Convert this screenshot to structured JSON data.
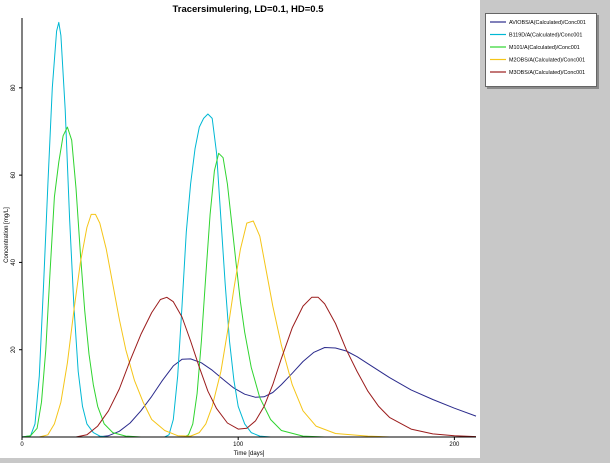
{
  "chart_data": {
    "type": "line",
    "title": "Tracersimulering, LD=0.1, HD=0.5",
    "xlabel": "Time  [days]",
    "ylabel": "Concentration  [mg/L]",
    "xlim": [
      0,
      210
    ],
    "ylim": [
      0,
      96
    ],
    "x_ticks": [
      0,
      100,
      200
    ],
    "y_ticks": [
      20,
      40,
      60,
      80
    ],
    "grid": false,
    "legend_position": "top-right, outside plot",
    "series": [
      {
        "name": "AVIOBS/A(Calculated)/Conc001",
        "color": "#2b2b8c",
        "points": [
          [
            0,
            0
          ],
          [
            35,
            0
          ],
          [
            40,
            0.3
          ],
          [
            45,
            1.3
          ],
          [
            50,
            3.2
          ],
          [
            55,
            6.0
          ],
          [
            60,
            9.3
          ],
          [
            65,
            13
          ],
          [
            70,
            16.3
          ],
          [
            74,
            17.8
          ],
          [
            78,
            17.9
          ],
          [
            83,
            17
          ],
          [
            88,
            15.3
          ],
          [
            93,
            13.2
          ],
          [
            98,
            11.2
          ],
          [
            103,
            9.8
          ],
          [
            108,
            9.1
          ],
          [
            112,
            9.2
          ],
          [
            116,
            10.2
          ],
          [
            120,
            12
          ],
          [
            125,
            14.6
          ],
          [
            130,
            17.3
          ],
          [
            135,
            19.4
          ],
          [
            140,
            20.5
          ],
          [
            145,
            20.4
          ],
          [
            150,
            19.7
          ],
          [
            155,
            18.4
          ],
          [
            160,
            16.8
          ],
          [
            170,
            13.6
          ],
          [
            180,
            10.8
          ],
          [
            190,
            8.6
          ],
          [
            200,
            6.6
          ],
          [
            210,
            4.8
          ]
        ]
      },
      {
        "name": "B119D/A(Calculated)/Conc001",
        "color": "#00b8d4",
        "points": [
          [
            0,
            0
          ],
          [
            4,
            0.3
          ],
          [
            6,
            3
          ],
          [
            8,
            14
          ],
          [
            10,
            35
          ],
          [
            12,
            58
          ],
          [
            14,
            80
          ],
          [
            16,
            93
          ],
          [
            17,
            95
          ],
          [
            18,
            92
          ],
          [
            20,
            75
          ],
          [
            22,
            50
          ],
          [
            24,
            30
          ],
          [
            26,
            15
          ],
          [
            28,
            7
          ],
          [
            30,
            3
          ],
          [
            33,
            1
          ],
          [
            36,
            0.2
          ],
          [
            40,
            0
          ],
          [
            66,
            0
          ],
          [
            68,
            0.5
          ],
          [
            70,
            4
          ],
          [
            72,
            14
          ],
          [
            74,
            30
          ],
          [
            76,
            47
          ],
          [
            78,
            58
          ],
          [
            80,
            66
          ],
          [
            82,
            71
          ],
          [
            84,
            73
          ],
          [
            86,
            74
          ],
          [
            88,
            73
          ],
          [
            90,
            65
          ],
          [
            92,
            50
          ],
          [
            94,
            35
          ],
          [
            96,
            22
          ],
          [
            98,
            13
          ],
          [
            100,
            7
          ],
          [
            103,
            3
          ],
          [
            106,
            1
          ],
          [
            110,
            0.2
          ],
          [
            115,
            0
          ]
        ]
      },
      {
        "name": "M101/A(Calculated)/Conc001",
        "color": "#2fd42f",
        "points": [
          [
            0,
            0
          ],
          [
            4,
            0.3
          ],
          [
            7,
            2
          ],
          [
            9,
            8
          ],
          [
            11,
            20
          ],
          [
            13,
            38
          ],
          [
            15,
            55
          ],
          [
            17,
            63
          ],
          [
            19,
            69
          ],
          [
            21,
            71
          ],
          [
            23,
            68
          ],
          [
            25,
            57
          ],
          [
            27,
            42
          ],
          [
            29,
            29
          ],
          [
            31,
            19
          ],
          [
            33,
            12
          ],
          [
            35,
            7
          ],
          [
            38,
            3
          ],
          [
            42,
            1
          ],
          [
            48,
            0.2
          ],
          [
            55,
            0
          ],
          [
            75,
            0
          ],
          [
            77,
            0.5
          ],
          [
            79,
            3
          ],
          [
            81,
            10
          ],
          [
            83,
            22
          ],
          [
            85,
            37
          ],
          [
            87,
            51
          ],
          [
            89,
            61
          ],
          [
            91,
            65
          ],
          [
            93,
            64
          ],
          [
            95,
            58
          ],
          [
            97,
            49
          ],
          [
            99,
            40
          ],
          [
            101,
            31
          ],
          [
            103,
            24
          ],
          [
            106,
            16
          ],
          [
            110,
            9
          ],
          [
            115,
            4
          ],
          [
            120,
            1.5
          ],
          [
            130,
            0.2
          ],
          [
            140,
            0
          ]
        ]
      },
      {
        "name": "M2OBS/A(Calculated)/Conc001",
        "color": "#f5c518",
        "points": [
          [
            0,
            0
          ],
          [
            8,
            0
          ],
          [
            12,
            0.5
          ],
          [
            15,
            3
          ],
          [
            18,
            8
          ],
          [
            21,
            17
          ],
          [
            24,
            29
          ],
          [
            27,
            40
          ],
          [
            30,
            48
          ],
          [
            32,
            51
          ],
          [
            34,
            51
          ],
          [
            36,
            49
          ],
          [
            39,
            43
          ],
          [
            42,
            35
          ],
          [
            45,
            27
          ],
          [
            48,
            20
          ],
          [
            52,
            13
          ],
          [
            56,
            8
          ],
          [
            60,
            4
          ],
          [
            66,
            1.5
          ],
          [
            72,
            0.3
          ],
          [
            78,
            0.2
          ],
          [
            82,
            1
          ],
          [
            85,
            3
          ],
          [
            88,
            7
          ],
          [
            92,
            15
          ],
          [
            95,
            24
          ],
          [
            98,
            34
          ],
          [
            101,
            43
          ],
          [
            104,
            49
          ],
          [
            107,
            49.5
          ],
          [
            110,
            46
          ],
          [
            113,
            38
          ],
          [
            116,
            30
          ],
          [
            120,
            21
          ],
          [
            125,
            12
          ],
          [
            130,
            6
          ],
          [
            136,
            2.5
          ],
          [
            145,
            0.8
          ],
          [
            160,
            0.2
          ],
          [
            170,
            0
          ]
        ]
      },
      {
        "name": "M3OBS/A(Calculated)/Conc001",
        "color": "#9b1c1c",
        "points": [
          [
            0,
            0
          ],
          [
            25,
            0
          ],
          [
            30,
            0.5
          ],
          [
            35,
            2.5
          ],
          [
            40,
            6
          ],
          [
            45,
            11
          ],
          [
            50,
            17.5
          ],
          [
            55,
            23.5
          ],
          [
            60,
            28.5
          ],
          [
            64,
            31.5
          ],
          [
            67,
            32
          ],
          [
            70,
            31
          ],
          [
            74,
            27.5
          ],
          [
            78,
            22
          ],
          [
            82,
            16
          ],
          [
            86,
            10.5
          ],
          [
            90,
            6.5
          ],
          [
            95,
            3.2
          ],
          [
            100,
            1.8
          ],
          [
            104,
            2
          ],
          [
            108,
            3.7
          ],
          [
            112,
            7
          ],
          [
            116,
            12
          ],
          [
            120,
            18
          ],
          [
            125,
            25
          ],
          [
            130,
            30
          ],
          [
            134,
            32
          ],
          [
            137,
            32
          ],
          [
            140,
            30.5
          ],
          [
            145,
            26
          ],
          [
            150,
            20
          ],
          [
            155,
            15
          ],
          [
            160,
            10.5
          ],
          [
            165,
            7
          ],
          [
            170,
            4.5
          ],
          [
            180,
            1.8
          ],
          [
            190,
            0.7
          ],
          [
            200,
            0.3
          ],
          [
            210,
            0.1
          ]
        ]
      }
    ]
  }
}
